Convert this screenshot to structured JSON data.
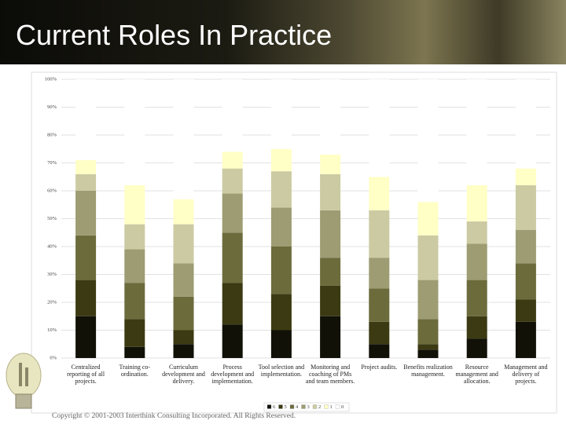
{
  "header": {
    "title": "Current Roles In Practice"
  },
  "chart_data": {
    "type": "stacked-bar",
    "categories": [
      "Centralized reporting of all projects.",
      "Training co-ordination.",
      "Curriculum development and delivery.",
      "Process development and implementation.",
      "Tool selection and implementation.",
      "Monitoring and coaching of PMs and team members.",
      "Project audits.",
      "Benefits realization management.",
      "Resource management and allocation.",
      "Management and delivery of projects."
    ],
    "series": [
      {
        "name": "6",
        "color": "#111108",
        "values": [
          15,
          4,
          5,
          12,
          10,
          15,
          5,
          3,
          7,
          13
        ]
      },
      {
        "name": "5",
        "color": "#3b3a12",
        "values": [
          13,
          10,
          5,
          15,
          13,
          11,
          8,
          2,
          8,
          8
        ]
      },
      {
        "name": "4",
        "color": "#6c6b3c",
        "values": [
          16,
          13,
          12,
          18,
          17,
          10,
          12,
          9,
          13,
          13
        ]
      },
      {
        "name": "3",
        "color": "#9d9c72",
        "values": [
          16,
          12,
          12,
          14,
          14,
          17,
          11,
          14,
          13,
          12
        ]
      },
      {
        "name": "2",
        "color": "#cbcaa2",
        "values": [
          6,
          9,
          14,
          9,
          13,
          13,
          17,
          16,
          8,
          16
        ]
      },
      {
        "name": "1",
        "color": "#ffffc6",
        "values": [
          5,
          14,
          9,
          6,
          8,
          7,
          12,
          12,
          13,
          6
        ]
      },
      {
        "name": "0",
        "color": "#ffffff",
        "values": [
          29,
          38,
          43,
          26,
          25,
          27,
          35,
          44,
          38,
          32
        ]
      }
    ],
    "ylim": [
      0,
      100
    ],
    "yticks": [
      {
        "value": 0,
        "label": "0%"
      },
      {
        "value": 10,
        "label": "10%"
      },
      {
        "value": 20,
        "label": "20%"
      },
      {
        "value": 30,
        "label": "30%"
      },
      {
        "value": 40,
        "label": "40%"
      },
      {
        "value": 50,
        "label": "50%"
      },
      {
        "value": 60,
        "label": "60%"
      },
      {
        "value": 70,
        "label": "70%"
      },
      {
        "value": 80,
        "label": "80%"
      },
      {
        "value": 90,
        "label": "90%"
      },
      {
        "value": 100,
        "label": "100%"
      }
    ],
    "grid": true
  },
  "footer": {
    "copyright": "Copyright © 2001-2003 Interthink Consulting Incorporated. All Rights Reserved."
  }
}
